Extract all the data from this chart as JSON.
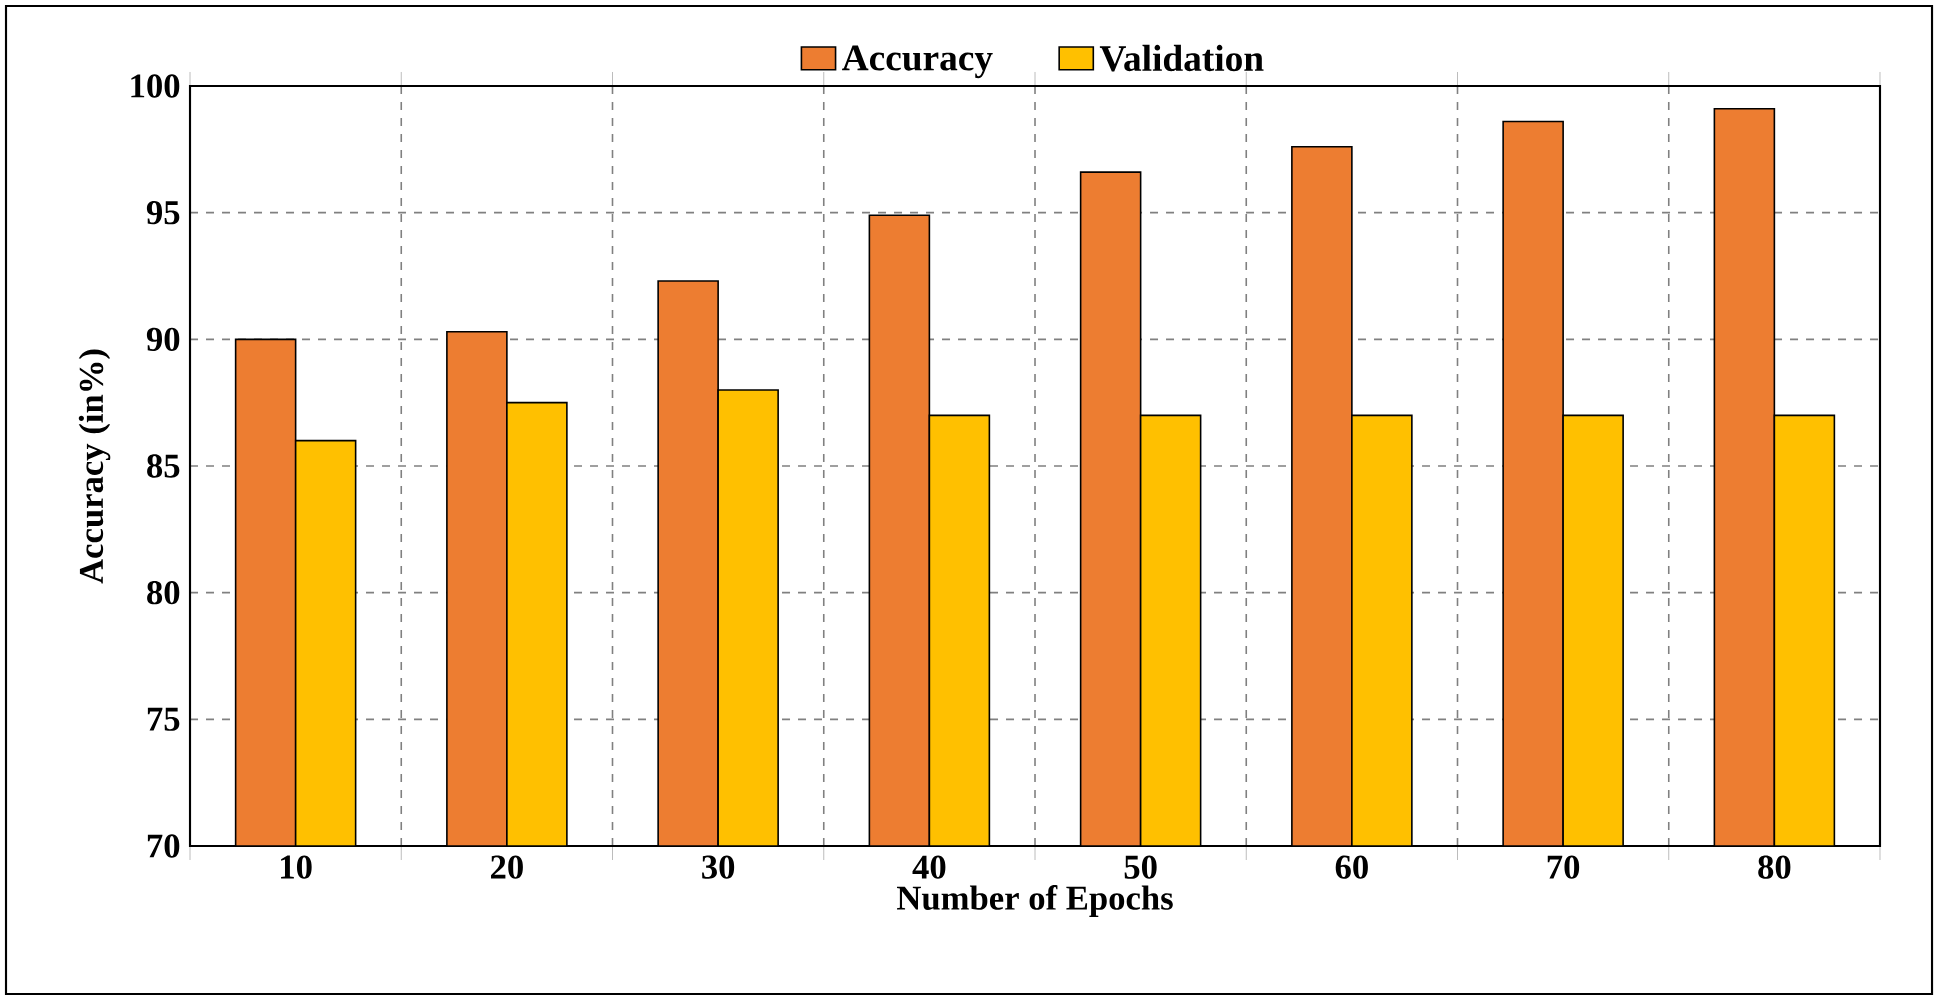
{
  "chart_data": {
    "type": "bar",
    "xlabel": "Number of Epochs",
    "ylabel": "Accuracy  (in%)",
    "categories": [
      "10",
      "20",
      "30",
      "40",
      "50",
      "60",
      "70",
      "80"
    ],
    "series": [
      {
        "name": "Accuracy",
        "color": "#ed7d31",
        "values": [
          90.0,
          90.3,
          92.3,
          94.9,
          96.6,
          97.6,
          98.6,
          99.1
        ]
      },
      {
        "name": "Validation",
        "color": "#ffc000",
        "values": [
          86.0,
          87.5,
          88.0,
          87.0,
          87.0,
          87.0,
          87.0,
          87.0
        ]
      }
    ],
    "ylim": [
      70,
      100
    ],
    "yticks": [
      70,
      75,
      80,
      85,
      90,
      95,
      100
    ],
    "grid": true,
    "legend": "top"
  }
}
